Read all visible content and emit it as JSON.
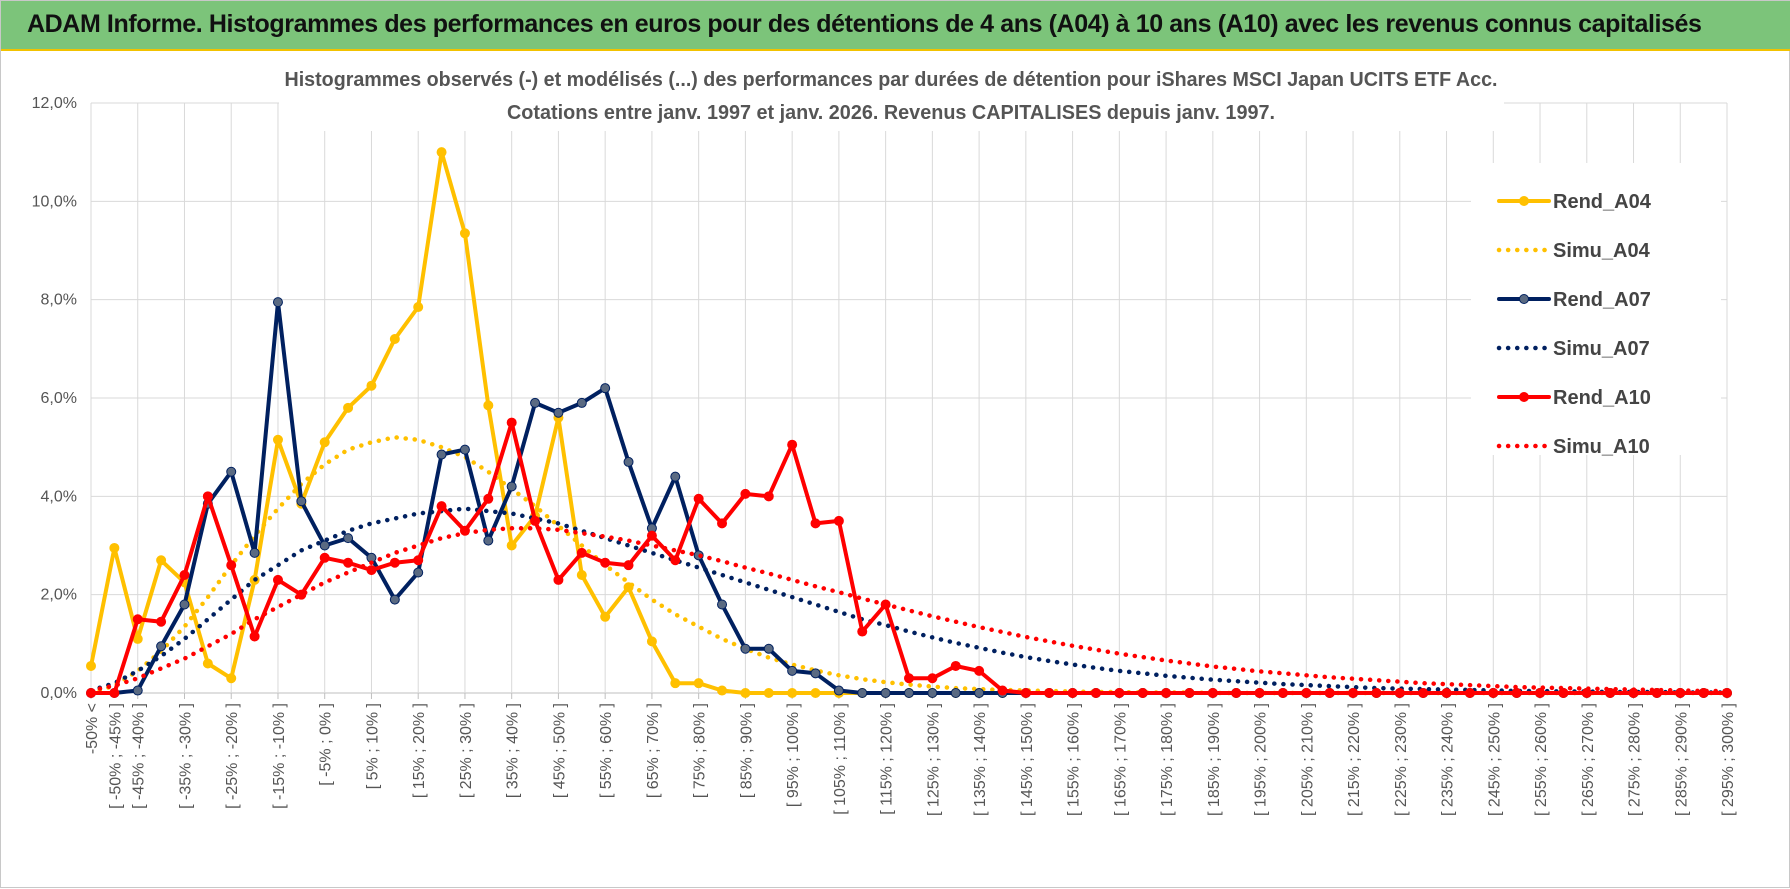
{
  "banner": {
    "title": "ADAM Informe. Histogrammes des performances en euros pour des détentions de 4 ans (A04) à 10 ans (A10) avec les revenus connus capitalisés"
  },
  "chart_data": {
    "type": "line",
    "title": "Histogrammes observés (-) et modélisés (...) des performances par durées de détention pour iShares MSCI Japan UCITS ETF Acc.",
    "subtitle": "Cotations entre janv. 1997 et janv. 2026. Revenus CAPITALISES depuis janv. 1997.",
    "ylim": [
      0,
      12
    ],
    "yticks": [
      "0,0%",
      "2,0%",
      "4,0%",
      "6,0%",
      "8,0%",
      "10,0%",
      "12,0%"
    ],
    "legend_position": "right",
    "categories": [
      "-50% <",
      "[ -50% ; -45% ]",
      "[ -45% ; -40% ]",
      "[ -40% ; -35% ]",
      "[ -35% ; -30% ]",
      "[ -30% ; -25% ]",
      "[ -25% ; -20% ]",
      "[ -20% ; -15% ]",
      "[ -15% ; -10% ]",
      "[ -10% ; -5% ]",
      "[ -5% ; 0% ]",
      "[ 0% ; 5% ]",
      "[ 5% ; 10% ]",
      "[ 10% ; 15% ]",
      "[ 15% ; 20% ]",
      "[ 20% ; 25% ]",
      "[ 25% ; 30% ]",
      "[ 30% ; 35% ]",
      "[ 35% ; 40% ]",
      "[ 40% ; 45% ]",
      "[ 45% ; 50% ]",
      "[ 50% ; 55% ]",
      "[ 55% ; 60% ]",
      "[ 60% ; 65% ]",
      "[ 65% ; 70% ]",
      "[ 70% ; 75% ]",
      "[ 75% ; 80% ]",
      "[ 80% ; 85% ]",
      "[ 85% ; 90% ]",
      "[ 90% ; 95% ]",
      "[ 95% ; 100% ]",
      "[ 100% ; 105% ]",
      "[ 105% ; 110% ]",
      "[ 110% ; 115% ]",
      "[ 115% ; 120% ]",
      "[ 120% ; 125% ]",
      "[ 125% ; 130% ]",
      "[ 130% ; 135% ]",
      "[ 135% ; 140% ]",
      "[ 140% ; 145% ]",
      "[ 145% ; 150% ]",
      "[ 150% ; 155% ]",
      "[ 155% ; 160% ]",
      "[ 160% ; 165% ]",
      "[ 165% ; 170% ]",
      "[ 170% ; 175% ]",
      "[ 175% ; 180% ]",
      "[ 180% ; 185% ]",
      "[ 185% ; 190% ]",
      "[ 190% ; 195% ]",
      "[ 195% ; 200% ]",
      "[ 200% ; 205% ]",
      "[ 205% ; 210% ]",
      "[ 210% ; 215% ]",
      "[ 215% ; 220% ]",
      "[ 220% ; 225% ]",
      "[ 225% ; 230% ]",
      "[ 230% ; 235% ]",
      "[ 235% ; 240% ]",
      "[ 240% ; 245% ]",
      "[ 245% ; 250% ]",
      "[ 250% ; 255% ]",
      "[ 255% ; 260% ]",
      "[ 260% ; 265% ]",
      "[ 265% ; 270% ]",
      "[ 270% ; 275% ]",
      "[ 275% ; 280% ]",
      "[ 280% ; 285% ]",
      "[ 285% ; 290% ]",
      "[ 290% ; 295% ]",
      "[ 295% ; 300% ]"
    ],
    "series": [
      {
        "name": "Rend_A04",
        "style": "solid",
        "color": "#FFC000",
        "values": [
          0.55,
          2.95,
          1.1,
          2.7,
          2.25,
          0.6,
          0.3,
          2.3,
          5.15,
          3.85,
          5.1,
          5.8,
          6.25,
          7.2,
          7.85,
          11.0,
          9.35,
          5.85,
          3.0,
          3.6,
          5.6,
          2.4,
          1.55,
          2.15,
          1.05,
          0.2,
          0.2,
          0.05,
          0.0,
          0.0,
          0.0,
          0.0,
          0.0,
          0,
          0,
          0,
          0,
          0,
          0,
          0,
          0,
          0,
          0,
          0,
          0,
          0,
          0,
          0,
          0,
          0,
          0,
          0,
          0,
          0,
          0,
          0,
          0,
          0,
          0,
          0,
          0,
          0,
          0,
          0,
          0,
          0,
          0,
          0,
          0,
          0,
          0
        ]
      },
      {
        "name": "Simu_A04",
        "style": "dotted",
        "color": "#FFC000",
        "values": [
          0.0,
          0.15,
          0.45,
          0.85,
          1.35,
          1.95,
          2.6,
          3.2,
          3.75,
          4.25,
          4.65,
          4.95,
          5.1,
          5.2,
          5.15,
          5.0,
          4.8,
          4.5,
          4.15,
          3.8,
          3.4,
          3.0,
          2.6,
          2.25,
          1.9,
          1.6,
          1.35,
          1.1,
          0.9,
          0.72,
          0.58,
          0.46,
          0.36,
          0.28,
          0.22,
          0.17,
          0.13,
          0.1,
          0.08,
          0.06,
          0.05,
          0.04,
          0.03,
          0.02,
          0.02,
          0.01,
          0.01,
          0.01,
          0,
          0,
          0,
          0,
          0,
          0,
          0,
          0,
          0,
          0,
          0,
          0,
          0,
          0,
          0,
          0,
          0,
          0,
          0,
          0,
          0,
          0,
          0
        ]
      },
      {
        "name": "Rend_A07",
        "style": "solid",
        "color": "#002060",
        "values": [
          0.0,
          0.0,
          0.05,
          0.95,
          1.8,
          3.85,
          4.5,
          2.85,
          7.95,
          3.9,
          3.0,
          3.15,
          2.75,
          1.9,
          2.45,
          4.85,
          4.95,
          3.1,
          4.2,
          5.9,
          5.7,
          5.9,
          6.2,
          4.7,
          3.35,
          4.4,
          2.8,
          1.8,
          0.9,
          0.9,
          0.45,
          0.4,
          0.05,
          0.0,
          0.0,
          0.0,
          0.0,
          0.0,
          0.0,
          0.0,
          0,
          0,
          0,
          0,
          0,
          0,
          0,
          0,
          0,
          0,
          0,
          0,
          0,
          0,
          0,
          0,
          0,
          0,
          0,
          0,
          0,
          0,
          0,
          0,
          0,
          0,
          0,
          0,
          0,
          0,
          0
        ]
      },
      {
        "name": "Simu_A07",
        "style": "dotted",
        "color": "#002060",
        "values": [
          0.05,
          0.2,
          0.45,
          0.75,
          1.1,
          1.5,
          1.9,
          2.3,
          2.6,
          2.9,
          3.1,
          3.3,
          3.45,
          3.55,
          3.65,
          3.7,
          3.75,
          3.7,
          3.65,
          3.55,
          3.45,
          3.3,
          3.15,
          3.0,
          2.85,
          2.7,
          2.55,
          2.4,
          2.25,
          2.1,
          1.95,
          1.8,
          1.65,
          1.5,
          1.38,
          1.25,
          1.13,
          1.02,
          0.92,
          0.82,
          0.73,
          0.65,
          0.58,
          0.51,
          0.45,
          0.4,
          0.35,
          0.31,
          0.27,
          0.24,
          0.21,
          0.18,
          0.16,
          0.14,
          0.12,
          0.1,
          0.09,
          0.08,
          0.07,
          0.06,
          0.05,
          0.04,
          0.04,
          0.03,
          0.03,
          0.02,
          0.02,
          0.02,
          0.01,
          0.01,
          0.01
        ]
      },
      {
        "name": "Rend_A10",
        "style": "solid",
        "color": "#FF0000",
        "values": [
          0.0,
          0.0,
          1.5,
          1.45,
          2.4,
          4.0,
          2.6,
          1.15,
          2.3,
          2.0,
          2.75,
          2.65,
          2.5,
          2.65,
          2.7,
          3.8,
          3.3,
          3.95,
          5.5,
          3.5,
          2.3,
          2.85,
          2.65,
          2.6,
          3.2,
          2.7,
          3.95,
          3.45,
          4.05,
          4.0,
          5.05,
          3.45,
          3.5,
          1.25,
          1.8,
          0.3,
          0.3,
          0.55,
          0.45,
          0.05,
          0.0,
          0,
          0,
          0,
          0,
          0,
          0,
          0,
          0,
          0,
          0,
          0,
          0,
          0,
          0,
          0,
          0,
          0,
          0,
          0,
          0,
          0,
          0,
          0,
          0,
          0,
          0,
          0,
          0,
          0,
          0
        ]
      },
      {
        "name": "Simu_A10",
        "style": "dotted",
        "color": "#FF0000",
        "values": [
          0.05,
          0.15,
          0.3,
          0.5,
          0.7,
          0.95,
          1.2,
          1.5,
          1.75,
          2.0,
          2.25,
          2.45,
          2.65,
          2.85,
          3.0,
          3.15,
          3.25,
          3.32,
          3.35,
          3.35,
          3.32,
          3.25,
          3.18,
          3.1,
          3.0,
          2.9,
          2.8,
          2.68,
          2.55,
          2.43,
          2.3,
          2.17,
          2.05,
          1.92,
          1.8,
          1.68,
          1.56,
          1.45,
          1.34,
          1.24,
          1.14,
          1.05,
          0.96,
          0.88,
          0.8,
          0.73,
          0.66,
          0.6,
          0.54,
          0.49,
          0.44,
          0.4,
          0.36,
          0.32,
          0.29,
          0.26,
          0.23,
          0.2,
          0.18,
          0.16,
          0.14,
          0.12,
          0.11,
          0.1,
          0.09,
          0.08,
          0.07,
          0.06,
          0.05,
          0.04,
          0.04
        ]
      }
    ]
  }
}
